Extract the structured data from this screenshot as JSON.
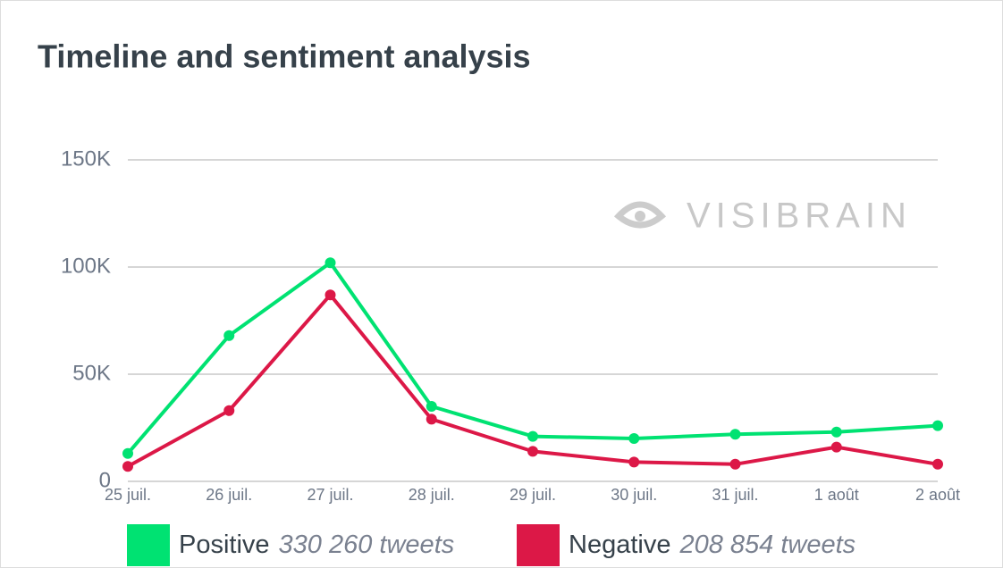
{
  "chart_data": {
    "type": "line",
    "title": "Timeline and sentiment analysis",
    "watermark": "VISIBRAIN",
    "categories": [
      "25 juil.",
      "26 juil.",
      "27 juil.",
      "28 juil.",
      "29 juil.",
      "30 juil.",
      "31 juil.",
      "1 août",
      "2 août"
    ],
    "series": [
      {
        "name": "Positive",
        "legend_label": "330 260 tweets",
        "color": "#00e272",
        "values": [
          13000,
          68000,
          102000,
          35000,
          21000,
          20000,
          22000,
          23000,
          26000
        ]
      },
      {
        "name": "Negative",
        "legend_label": "208 854 tweets",
        "color": "#dc1847",
        "values": [
          7000,
          33000,
          87000,
          29000,
          14000,
          9000,
          8000,
          16000,
          8000
        ]
      }
    ],
    "ylim": [
      0,
      150000
    ],
    "yticks": [
      0,
      {
        "value": 50000,
        "label": "50K"
      },
      {
        "value": 100000,
        "label": "100K"
      },
      {
        "value": 150000,
        "label": "150K"
      }
    ],
    "grid": true
  }
}
